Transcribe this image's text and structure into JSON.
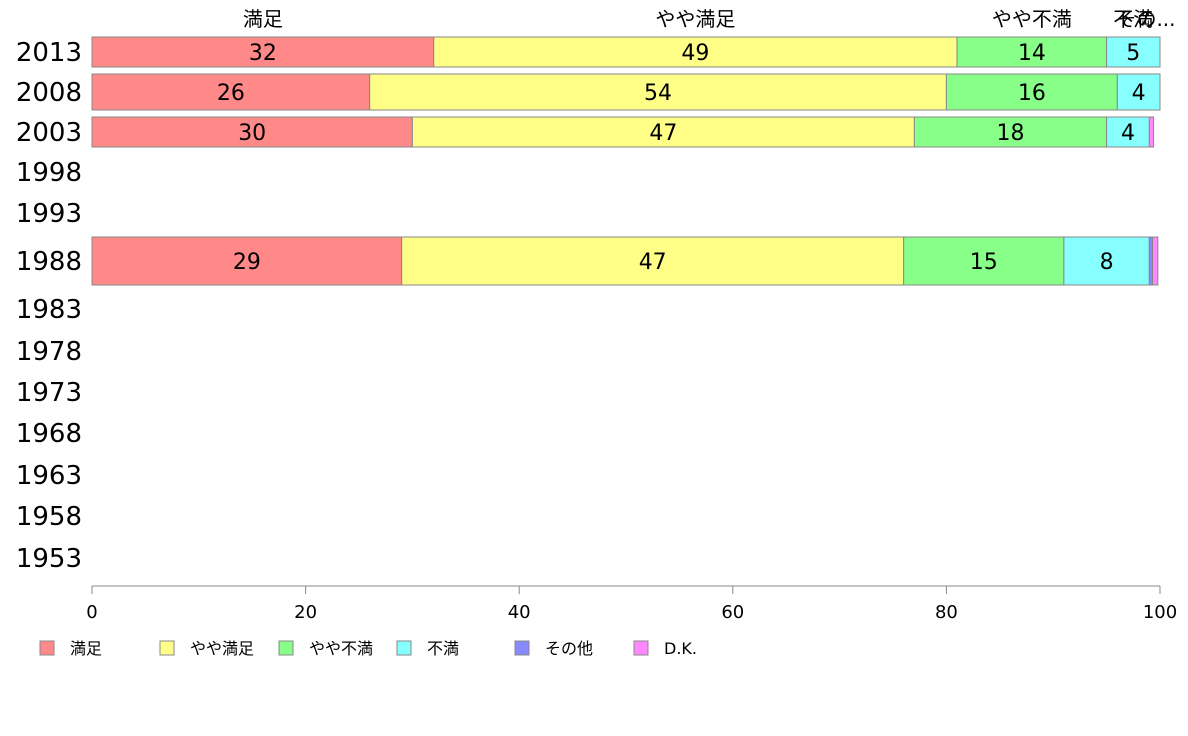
{
  "chart_data": {
    "type": "bar",
    "orientation": "horizontal",
    "stacked": true,
    "categories": [
      "2013",
      "2008",
      "2003",
      "1998",
      "1993",
      "1988",
      "1983",
      "1978",
      "1973",
      "1968",
      "1963",
      "1958",
      "1953"
    ],
    "series": [
      {
        "name": "満足",
        "color": "#ff8888",
        "values": [
          32,
          26,
          30,
          null,
          null,
          29,
          null,
          null,
          null,
          null,
          null,
          null,
          null
        ]
      },
      {
        "name": "やや満足",
        "color": "#ffff88",
        "values": [
          49,
          54,
          47,
          null,
          null,
          47,
          null,
          null,
          null,
          null,
          null,
          null,
          null
        ]
      },
      {
        "name": "やや不満",
        "color": "#88ff88",
        "values": [
          14,
          16,
          18,
          null,
          null,
          15,
          null,
          null,
          null,
          null,
          null,
          null,
          null
        ]
      },
      {
        "name": "不満",
        "color": "#88ffff",
        "values": [
          5,
          4,
          4,
          null,
          null,
          8,
          null,
          null,
          null,
          null,
          null,
          null,
          null
        ]
      },
      {
        "name": "その他",
        "color": "#8888ff",
        "values": [
          0,
          0,
          0,
          null,
          null,
          0.3,
          null,
          null,
          null,
          null,
          null,
          null,
          null
        ]
      },
      {
        "name": "D.K.",
        "color": "#ff88ff",
        "values": [
          0,
          0,
          0.4,
          null,
          null,
          0.5,
          null,
          null,
          null,
          null,
          null,
          null,
          null
        ]
      }
    ],
    "segment_labels": {
      "2013": [
        "32",
        "49",
        "14",
        "5",
        "",
        ""
      ],
      "2008": [
        "26",
        "54",
        "16",
        "4",
        "",
        ""
      ],
      "2003": [
        "30",
        "47",
        "18",
        "4",
        "",
        ""
      ],
      "1988": [
        "29",
        "47",
        "15",
        "8",
        "",
        ""
      ]
    },
    "top_labels": [
      "満足",
      "やや満足",
      "やや不満",
      "不満",
      "その..."
    ],
    "xlim": [
      0,
      100
    ],
    "xticks": [
      0,
      20,
      40,
      60,
      80,
      100
    ],
    "legend_position": "bottom-left",
    "grid": false
  }
}
